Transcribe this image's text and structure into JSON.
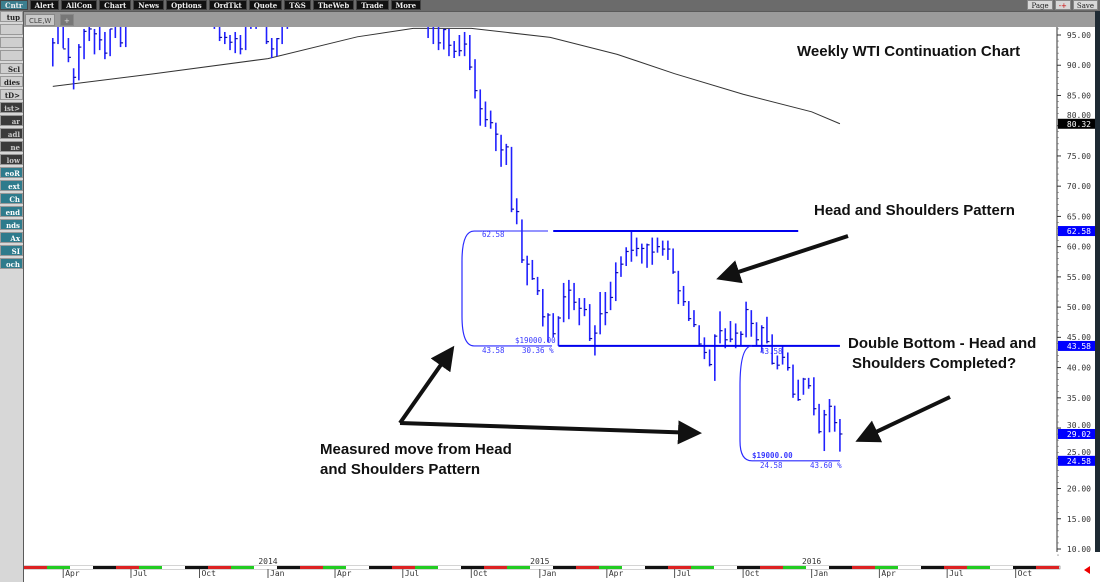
{
  "toolbar": {
    "items": [
      "Cntr",
      "Alert",
      "AllCon",
      "Chart",
      "News",
      "Options",
      "OrdTkt",
      "Quote",
      "T&S",
      "TheWeb",
      "Trade",
      "More"
    ],
    "right": [
      "Page",
      "-+",
      "Save"
    ]
  },
  "tabs": {
    "active": "CLE,W",
    "add": "+"
  },
  "sidebar": {
    "items": [
      "tup",
      "",
      "",
      "",
      "Scl",
      "dies",
      "tD>",
      "ist>",
      "ar",
      "adl",
      "ne",
      "low",
      "eoR",
      "ext",
      "Ch",
      "end",
      "nds",
      "Ax",
      "SI",
      "och"
    ]
  },
  "colors": {
    "bars": "#2020ff",
    "drawings": "#0000ee",
    "moving_average": "#333333",
    "last_price_badge": "#0000ff",
    "ma_badge": "#000000"
  },
  "annotations": {
    "title": "Weekly WTI Continuation Chart",
    "hs": "Head and Shoulders Pattern",
    "db1": "Double Bottom - Head and",
    "db2": "Shoulders Completed?",
    "mm1": "Measured move from Head",
    "mm2": "and Shoulders Pattern"
  },
  "measure1": {
    "top": "62.58",
    "bottom": "43.58",
    "percent": "30.36 %",
    "amount": "$19000.00"
  },
  "measure2": {
    "top": "43.58",
    "bottom": "24.58",
    "percent": "43.60 %",
    "amount": "$19000.00"
  },
  "chart_data": {
    "type": "ohlc-bar",
    "title": "Weekly WTI Continuation Chart",
    "symbol": "CLE,W",
    "ylim": [
      8,
      96.3
    ],
    "y_ticks": [
      "95.00",
      "90.00",
      "85.00",
      "80.00",
      "75.00",
      "70.00",
      "65.00",
      "60.00",
      "55.00",
      "50.00",
      "45.00",
      "40.00",
      "35.00",
      "30.00",
      "25.00",
      "20.00",
      "15.00",
      "10.00"
    ],
    "price_badges": [
      {
        "label": "80.32",
        "kind": "ma"
      },
      {
        "label": "62.58",
        "kind": "line"
      },
      {
        "label": "43.58",
        "kind": "line"
      },
      {
        "label": "29.02",
        "kind": "last"
      },
      {
        "label": "24.58",
        "kind": "line"
      }
    ],
    "x_month_labels": [
      [
        "2013-04-01",
        "Apr"
      ],
      [
        "2013-07-01",
        "Jul"
      ],
      [
        "2013-10-01",
        "Oct"
      ],
      [
        "2014-01-01",
        "Jan"
      ],
      [
        "2014-04-01",
        "Apr"
      ],
      [
        "2014-07-01",
        "Jul"
      ],
      [
        "2014-10-01",
        "Oct"
      ],
      [
        "2015-01-01",
        "Jan"
      ],
      [
        "2015-04-01",
        "Apr"
      ],
      [
        "2015-07-01",
        "Jul"
      ],
      [
        "2015-10-01",
        "Oct"
      ],
      [
        "2016-01-01",
        "Jan"
      ],
      [
        "2016-04-01",
        "Apr"
      ],
      [
        "2016-07-01",
        "Jul"
      ],
      [
        "2016-10-01",
        "Oct"
      ]
    ],
    "x_year_labels": [
      [
        "2014-01-01",
        "2014"
      ],
      [
        "2015-01-01",
        "2015"
      ],
      [
        "2016-01-01",
        "2016"
      ]
    ],
    "horizontal_lines": [
      {
        "value": 62.58,
        "from": "2015-01-19",
        "to": "2015-12-14"
      },
      {
        "value": 43.58,
        "from": "2015-01-26",
        "to": "2016-02-08"
      }
    ],
    "moving_average": [
      [
        "2013-03-18",
        86.5
      ],
      [
        "2013-08-01",
        88.6
      ],
      [
        "2014-01-01",
        91.1
      ],
      [
        "2014-05-01",
        94.7
      ],
      [
        "2014-07-15",
        96.1
      ],
      [
        "2014-10-01",
        96.1
      ],
      [
        "2015-01-15",
        94.6
      ],
      [
        "2015-04-15",
        91.8
      ],
      [
        "2015-07-01",
        88.6
      ],
      [
        "2015-10-01",
        85.2
      ],
      [
        "2016-01-01",
        82.3
      ],
      [
        "2016-02-08",
        80.32
      ]
    ],
    "bars_hlc": [
      [
        "2013-03-18",
        94.5,
        89.8,
        93.7
      ],
      [
        "2013-03-25",
        97.8,
        93.5,
        97.2
      ],
      [
        "2013-04-01",
        97.8,
        92.8,
        92.7
      ],
      [
        "2013-04-08",
        94.5,
        90.5,
        91.3
      ],
      [
        "2013-04-15",
        89.5,
        86.0,
        88.0
      ],
      [
        "2013-04-22",
        93.5,
        87.5,
        93.0
      ],
      [
        "2013-04-29",
        96.0,
        91.0,
        95.6
      ],
      [
        "2013-05-06",
        96.5,
        94.0,
        96.0
      ],
      [
        "2013-05-13",
        96.0,
        91.8,
        95.2
      ],
      [
        "2013-05-20",
        96.8,
        92.5,
        94.2
      ],
      [
        "2013-05-27",
        95.5,
        91.0,
        92.0
      ],
      [
        "2013-06-03",
        96.0,
        91.5,
        96.0
      ],
      [
        "2013-06-10",
        98.0,
        94.5,
        97.9
      ],
      [
        "2013-06-17",
        99.0,
        93.0,
        93.7
      ],
      [
        "2013-06-24",
        97.5,
        93.0,
        96.6
      ],
      [
        "2013-07-01",
        104,
        96.5,
        103.2
      ],
      [
        "2013-07-08",
        106,
        101,
        105.9
      ],
      [
        "2013-07-15",
        109,
        104,
        108
      ],
      [
        "2013-07-22",
        108.5,
        104.5,
        104.7
      ],
      [
        "2013-07-29",
        107.5,
        103,
        106.9
      ],
      [
        "2013-08-05",
        107,
        103,
        106
      ],
      [
        "2013-08-12",
        108,
        104,
        107.5
      ],
      [
        "2013-08-19",
        108,
        103,
        106.4
      ],
      [
        "2013-08-26",
        112,
        105,
        107.7
      ],
      [
        "2013-09-02",
        110,
        106,
        110.5
      ],
      [
        "2013-09-09",
        110.5,
        105.5,
        108.2
      ],
      [
        "2013-09-16",
        108.5,
        104,
        104.7
      ],
      [
        "2013-09-23",
        104,
        102,
        102.9
      ],
      [
        "2013-09-30",
        104,
        100,
        103.8
      ],
      [
        "2013-10-07",
        104,
        100,
        102
      ],
      [
        "2013-10-14",
        102.5,
        98.5,
        100.8
      ],
      [
        "2013-10-21",
        101,
        96,
        97.9
      ],
      [
        "2013-10-28",
        98.5,
        94,
        94.6
      ],
      [
        "2013-11-04",
        95.5,
        93.5,
        94.6
      ],
      [
        "2013-11-11",
        95,
        92.5,
        93.8
      ],
      [
        "2013-11-18",
        95.5,
        92,
        94.4
      ],
      [
        "2013-11-25",
        95,
        91.8,
        92.7
      ],
      [
        "2013-12-02",
        98,
        92.5,
        97.6
      ],
      [
        "2013-12-09",
        98.5,
        96,
        96.6
      ],
      [
        "2013-12-16",
        99.5,
        96,
        99.3
      ],
      [
        "2013-12-23",
        100.5,
        98.5,
        99.2
      ],
      [
        "2013-12-30",
        99.5,
        93.5,
        93.9
      ],
      [
        "2014-01-06",
        94.5,
        91.2,
        92.7
      ],
      [
        "2014-01-13",
        94.5,
        91.5,
        94.4
      ],
      [
        "2014-01-20",
        97.8,
        93.5,
        96.6
      ],
      [
        "2014-01-27",
        98.5,
        96,
        97.5
      ],
      [
        "2014-02-03",
        100.5,
        96.5,
        100
      ],
      [
        "2014-02-10",
        101,
        99,
        100.3
      ],
      [
        "2014-02-17",
        104,
        100,
        102.2
      ],
      [
        "2014-02-24",
        103.5,
        101,
        102.6
      ],
      [
        "2014-03-03",
        105,
        101,
        102.6
      ],
      [
        "2014-03-10",
        102,
        97.5,
        98.9
      ],
      [
        "2014-03-17",
        101,
        97.5,
        99.5
      ],
      [
        "2014-03-24",
        101.5,
        98.5,
        101.7
      ],
      [
        "2014-03-31",
        102,
        99,
        101.1
      ],
      [
        "2014-04-07",
        104,
        100,
        103.7
      ],
      [
        "2014-04-14",
        105,
        103,
        104.3
      ],
      [
        "2014-04-21",
        104.5,
        100.5,
        100.6
      ],
      [
        "2014-04-28",
        101.5,
        99,
        99.8
      ],
      [
        "2014-05-05",
        101,
        98.5,
        100
      ],
      [
        "2014-05-12",
        102.5,
        99.5,
        102
      ],
      [
        "2014-05-19",
        104.5,
        101.8,
        104.4
      ],
      [
        "2014-05-26",
        104.5,
        102,
        102.7
      ],
      [
        "2014-06-02",
        104,
        101.5,
        102.7
      ],
      [
        "2014-06-09",
        107.5,
        103,
        106.9
      ],
      [
        "2014-06-16",
        107.7,
        105.5,
        107.3
      ],
      [
        "2014-06-23",
        107.5,
        105,
        105.7
      ],
      [
        "2014-06-30",
        106.5,
        103.5,
        104.1
      ],
      [
        "2014-07-07",
        104.5,
        100.5,
        100.8
      ],
      [
        "2014-07-14",
        104,
        99,
        103.1
      ],
      [
        "2014-07-21",
        104.5,
        101,
        102.1
      ],
      [
        "2014-07-28",
        102.5,
        97.3,
        97.9
      ],
      [
        "2014-08-04",
        99,
        94.5,
        97.6
      ],
      [
        "2014-08-11",
        98.5,
        93.5,
        97.4
      ],
      [
        "2014-08-18",
        97.5,
        92.5,
        93.7
      ],
      [
        "2014-08-25",
        96,
        92.6,
        95.9
      ],
      [
        "2014-09-01",
        96,
        91.5,
        93.3
      ],
      [
        "2014-09-08",
        94,
        91.2,
        92.3
      ],
      [
        "2014-09-15",
        95,
        91.5,
        92.4
      ],
      [
        "2014-09-22",
        95.5,
        91.5,
        93.5
      ],
      [
        "2014-09-29",
        95,
        89.2,
        89.7
      ],
      [
        "2014-10-06",
        91,
        84.5,
        85.8
      ],
      [
        "2014-10-13",
        86,
        80,
        82.8
      ],
      [
        "2014-10-20",
        84,
        79.8,
        81
      ],
      [
        "2014-10-27",
        82.5,
        79.5,
        80.5
      ],
      [
        "2014-11-03",
        80.5,
        75.8,
        78.6
      ],
      [
        "2014-11-10",
        78.5,
        73.2,
        76
      ],
      [
        "2014-11-17",
        77,
        73.5,
        76.5
      ],
      [
        "2014-11-24",
        76.5,
        65.7,
        66.2
      ],
      [
        "2014-12-01",
        68,
        63.7,
        65.8
      ],
      [
        "2014-12-08",
        64.5,
        57.3,
        57.8
      ],
      [
        "2014-12-15",
        58.5,
        53.6,
        57.1
      ],
      [
        "2014-12-22",
        57.8,
        54.5,
        54.7
      ],
      [
        "2014-12-29",
        55,
        52,
        52.7
      ],
      [
        "2015-01-05",
        53,
        46.8,
        48.4
      ],
      [
        "2015-01-12",
        49,
        44.2,
        48.7
      ],
      [
        "2015-01-19",
        49,
        45,
        45.6
      ],
      [
        "2015-01-26",
        48.5,
        43.6,
        48.2
      ],
      [
        "2015-02-02",
        54,
        47.5,
        51.7
      ],
      [
        "2015-02-09",
        54.5,
        48,
        52.8
      ],
      [
        "2015-02-16",
        54,
        49.5,
        50.8
      ],
      [
        "2015-02-23",
        51.5,
        47,
        49.8
      ],
      [
        "2015-03-02",
        51.5,
        48.5,
        49.6
      ],
      [
        "2015-03-09",
        50.5,
        44.4,
        44.8
      ],
      [
        "2015-03-16",
        47,
        42,
        45.7
      ],
      [
        "2015-03-23",
        52.5,
        45.5,
        48.9
      ],
      [
        "2015-03-30",
        52.5,
        47,
        49.1
      ],
      [
        "2015-04-06",
        54.2,
        49.5,
        51.6
      ],
      [
        "2015-04-13",
        57.4,
        51,
        55.7
      ],
      [
        "2015-04-20",
        58.4,
        55,
        57.1
      ],
      [
        "2015-04-27",
        59.9,
        56.8,
        59.2
      ],
      [
        "2015-05-04",
        62.6,
        57.5,
        59.4
      ],
      [
        "2015-05-11",
        61.5,
        58.4,
        59.7
      ],
      [
        "2015-05-18",
        60.5,
        57.2,
        59.7
      ],
      [
        "2015-05-25",
        60.5,
        56.5,
        60.3
      ],
      [
        "2015-06-01",
        61.5,
        57,
        59.1
      ],
      [
        "2015-06-08",
        61.5,
        59,
        60
      ],
      [
        "2015-06-15",
        61,
        58.5,
        59.6
      ],
      [
        "2015-06-22",
        61,
        57.8,
        59.6
      ],
      [
        "2015-06-29",
        59.7,
        55.5,
        55.8
      ],
      [
        "2015-07-06",
        56,
        50.5,
        52.7
      ],
      [
        "2015-07-13",
        53.5,
        50.2,
        50.9
      ],
      [
        "2015-07-20",
        51,
        47.7,
        48.1
      ],
      [
        "2015-07-27",
        49.5,
        46.7,
        47.1
      ],
      [
        "2015-08-03",
        47,
        43.5,
        43.9
      ],
      [
        "2015-08-10",
        45,
        41.4,
        42.5
      ],
      [
        "2015-08-17",
        43,
        40.2,
        40.5
      ],
      [
        "2015-08-24",
        45.5,
        37.8,
        45.2
      ],
      [
        "2015-08-31",
        49.3,
        44,
        46.1
      ],
      [
        "2015-09-07",
        46.5,
        43.2,
        44.6
      ],
      [
        "2015-09-14",
        47.7,
        44.2,
        44.7
      ],
      [
        "2015-09-21",
        47.3,
        43.2,
        45.7
      ],
      [
        "2015-09-28",
        46,
        43.6,
        45.5
      ],
      [
        "2015-10-05",
        50.9,
        45,
        49.6
      ],
      [
        "2015-10-12",
        49.5,
        45.1,
        47.3
      ],
      [
        "2015-10-19",
        47.5,
        43.6,
        44.6
      ],
      [
        "2015-10-26",
        47,
        42.6,
        46.6
      ],
      [
        "2015-11-02",
        48.4,
        44,
        44.3
      ],
      [
        "2015-11-09",
        45.5,
        40.5,
        40.7
      ],
      [
        "2015-11-16",
        42,
        39.7,
        40.4
      ],
      [
        "2015-11-23",
        43.5,
        40.5,
        41.7
      ],
      [
        "2015-11-30",
        42.5,
        39.5,
        40
      ],
      [
        "2015-12-07",
        40.5,
        35,
        35.6
      ],
      [
        "2015-12-14",
        38,
        34.5,
        34.7
      ],
      [
        "2015-12-21",
        38.3,
        35.5,
        38.1
      ],
      [
        "2015-12-28",
        38.3,
        36.5,
        37.0
      ],
      [
        "2016-01-04",
        38.4,
        32.1,
        33.2
      ],
      [
        "2016-01-11",
        34,
        29.1,
        29.4
      ],
      [
        "2016-01-18",
        33,
        26.2,
        32.2
      ],
      [
        "2016-01-25",
        34.8,
        29.3,
        33.6
      ],
      [
        "2016-02-01",
        33.7,
        29.4,
        30.9
      ],
      [
        "2016-02-08",
        31.5,
        26.1,
        29.02
      ]
    ]
  }
}
